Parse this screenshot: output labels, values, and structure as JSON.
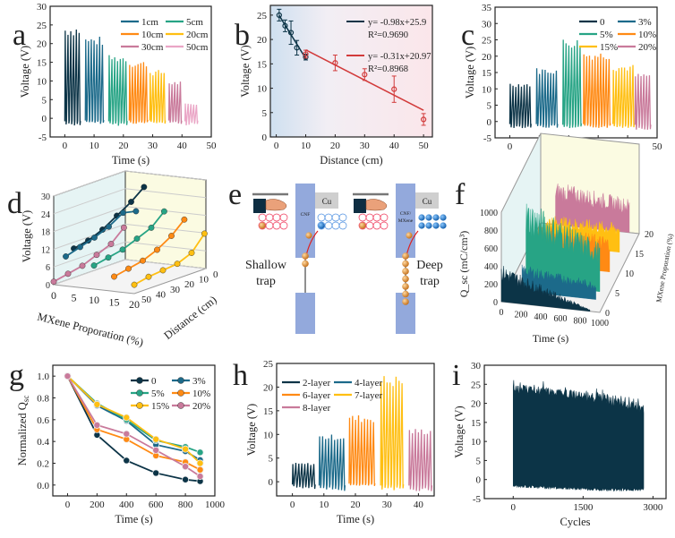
{
  "colors": {
    "navy": "#0c3447",
    "blue": "#1c6a8a",
    "green": "#27a485",
    "orange": "#ff8a14",
    "yellow": "#ffbf12",
    "pink": "#c97a9b",
    "lightpink": "#eaa6c6",
    "red": "#d23b3b"
  },
  "chart_data": [
    {
      "panel": "a",
      "type": "line",
      "xlabel": "Time (s)",
      "ylabel": "Voltage (V)",
      "xlim": [
        -5,
        50
      ],
      "ylim": [
        -5,
        30
      ],
      "xticks": [
        0,
        10,
        20,
        30,
        40,
        50
      ],
      "yticks": [
        -5,
        0,
        5,
        10,
        15,
        20,
        25,
        30
      ],
      "legend": [
        "1cm",
        "5cm",
        "10cm",
        "20cm",
        "30cm",
        "50cm"
      ],
      "segments": [
        {
          "color": "navy",
          "t": [
            0,
            6
          ],
          "peak": 25,
          "min": -2
        },
        {
          "name": "1cm",
          "color": "blue",
          "t": [
            7,
            13.5
          ],
          "peak": 22,
          "min": -1.5
        },
        {
          "name": "5cm",
          "color": "green",
          "t": [
            15,
            21
          ],
          "peak": 17,
          "min": -2
        },
        {
          "name": "10cm",
          "color": "orange",
          "t": [
            22,
            28
          ],
          "peak": 15.5,
          "min": -1.5
        },
        {
          "name": "20cm",
          "color": "yellow",
          "t": [
            29,
            34.5
          ],
          "peak": 13,
          "min": -1.5
        },
        {
          "name": "30cm",
          "color": "pink",
          "t": [
            35.5,
            40
          ],
          "peak": 10,
          "min": -1.5
        },
        {
          "name": "50cm",
          "color": "lightpink",
          "t": [
            41,
            46
          ],
          "peak": 4,
          "min": -2
        }
      ]
    },
    {
      "panel": "b",
      "type": "scatter",
      "xlabel": "Distance (cm)",
      "ylabel": "Voltage (V)",
      "xlim": [
        -2,
        53
      ],
      "ylim": [
        0,
        27
      ],
      "xticks": [
        0,
        10,
        20,
        30,
        40,
        50
      ],
      "yticks": [
        0,
        5,
        10,
        15,
        20,
        25
      ],
      "series": [
        {
          "name": "y= -0.98x+25.9",
          "r2": "R²=0.9690",
          "color": "navy",
          "x": [
            1,
            3,
            5,
            7,
            10
          ],
          "y": [
            25,
            22.8,
            21.4,
            18.3,
            16.4
          ],
          "err": [
            1.2,
            1.2,
            2.4,
            1.5,
            0.6
          ],
          "fit": [
            -0.98,
            25.9
          ],
          "fitx": [
            1,
            10
          ]
        },
        {
          "name": "y= -0.31x+20.97",
          "r2": "R²=0.8968",
          "color": "red",
          "x": [
            10,
            20,
            30,
            40,
            50
          ],
          "y": [
            17,
            15.2,
            12.8,
            9.8,
            3.6
          ],
          "err": [
            0.8,
            1.6,
            1.2,
            2.7,
            1.2
          ],
          "fit": [
            -0.31,
            20.97
          ],
          "fitx": [
            10,
            50
          ]
        }
      ]
    },
    {
      "panel": "c",
      "type": "line",
      "xlabel": "Time (s)",
      "ylabel": "Voltage (V)",
      "xlim": [
        -5,
        50
      ],
      "ylim": [
        -5,
        35
      ],
      "xticks": [
        0,
        10,
        20,
        30,
        40,
        50
      ],
      "yticks": [
        -5,
        0,
        5,
        10,
        15,
        20,
        25,
        30,
        35
      ],
      "legend": [
        "0",
        "3%",
        "5%",
        "10%",
        "15%",
        "20%"
      ],
      "segments": [
        {
          "name": "0",
          "color": "navy",
          "t": [
            0,
            7.5
          ],
          "peak": 12,
          "min": -2
        },
        {
          "name": "3%",
          "color": "blue",
          "t": [
            9,
            16
          ],
          "peak": 16.5,
          "min": -2
        },
        {
          "name": "5%",
          "color": "green",
          "t": [
            18,
            24
          ],
          "peak": 25.5,
          "min": -2.5
        },
        {
          "name": "10%",
          "color": "orange",
          "t": [
            25,
            34.5
          ],
          "peak": 21.5,
          "min": -2
        },
        {
          "name": "15%",
          "color": "yellow",
          "t": [
            35,
            42
          ],
          "peak": 17.5,
          "min": -2
        },
        {
          "name": "20%",
          "color": "pink",
          "t": [
            42.5,
            48.5
          ],
          "peak": 14.8,
          "min": -2.5
        }
      ]
    },
    {
      "panel": "d",
      "type": "line3d",
      "xlabel": "MXene Proporation (%)",
      "ylabel": "Distance (cm)",
      "zlabel": "Voltage (V)",
      "xticks": [
        0,
        5,
        10,
        15,
        20
      ],
      "yticks": [
        0,
        10,
        20,
        30,
        40,
        50
      ],
      "zticks": [
        0,
        6,
        12,
        18,
        24,
        30
      ],
      "distances": [
        1,
        10,
        20,
        30,
        40,
        50
      ],
      "series": [
        {
          "color": "navy",
          "mxene": 5,
          "v": [
            25.5,
            22,
            19,
            16,
            14,
            13
          ]
        },
        {
          "color": "blue",
          "mxene": 3,
          "v": [
            17,
            18,
            15,
            13,
            11.5,
            10
          ]
        },
        {
          "color": "green",
          "mxene": 10,
          "v": [
            18,
            14,
            12,
            10,
            9,
            8
          ]
        },
        {
          "color": "orange",
          "mxene": 15,
          "v": [
            16,
            12,
            9,
            7,
            6,
            5
          ]
        },
        {
          "color": "yellow",
          "mxene": 20,
          "v": [
            12,
            7,
            5,
            4.5,
            4,
            3
          ]
        },
        {
          "color": "pink",
          "mxene": 0,
          "v": [
            11,
            7,
            5,
            3,
            2,
            1
          ]
        }
      ]
    },
    {
      "panel": "f",
      "type": "waterfall3d",
      "xlabel": "Time (s)",
      "ylabel": "MXene Proporation (%)",
      "zlabel": "Q_sc (mC/cm³)",
      "xticks": [
        0,
        200,
        400,
        600,
        800,
        1000
      ],
      "yticks": [
        0,
        5,
        10,
        15,
        20
      ],
      "zticks": [
        0,
        200,
        400,
        600,
        800,
        1000
      ],
      "series": [
        {
          "color": "navy",
          "mxene": 0,
          "start": 420,
          "end": 20
        },
        {
          "color": "blue",
          "mxene": 3,
          "start": 300,
          "end": 200
        },
        {
          "color": "green",
          "mxene": 5,
          "start": 950,
          "end": 550
        },
        {
          "color": "orange",
          "mxene": 10,
          "start": 450,
          "end": 400
        },
        {
          "color": "yellow",
          "mxene": 15,
          "start": 330,
          "end": 330
        },
        {
          "color": "pink",
          "mxene": 20,
          "start": 480,
          "end": 380
        }
      ]
    },
    {
      "panel": "g",
      "type": "line",
      "xlabel": "Time (s)",
      "ylabel": "Normalized Q",
      "ylabel_sub": "sc",
      "xlim": [
        -100,
        1000
      ],
      "ylim": [
        -0.1,
        1.1
      ],
      "xticks": [
        0,
        200,
        400,
        600,
        800,
        1000
      ],
      "yticks": [
        0.0,
        0.2,
        0.4,
        0.6,
        0.8,
        1.0
      ],
      "x": [
        0,
        200,
        400,
        600,
        800,
        900
      ],
      "series": [
        {
          "name": "0",
          "color": "navy",
          "y": [
            1,
            0.46,
            0.225,
            0.11,
            0.05,
            0.035
          ]
        },
        {
          "name": "3%",
          "color": "blue",
          "y": [
            1,
            0.73,
            0.59,
            0.37,
            0.31,
            0.23
          ]
        },
        {
          "name": "5%",
          "color": "green",
          "y": [
            1,
            0.75,
            0.6,
            0.41,
            0.35,
            0.3
          ]
        },
        {
          "name": "10%",
          "color": "orange",
          "y": [
            1,
            0.51,
            0.42,
            0.27,
            0.21,
            0.14
          ]
        },
        {
          "name": "15%",
          "color": "yellow",
          "y": [
            1,
            0.74,
            0.62,
            0.42,
            0.33,
            0.2
          ]
        },
        {
          "name": "20%",
          "color": "pink",
          "y": [
            1,
            0.55,
            0.47,
            0.32,
            0.17,
            0.08
          ]
        }
      ]
    },
    {
      "panel": "h",
      "type": "line",
      "xlabel": "Time (s)",
      "ylabel": "Voltage (V)",
      "xlim": [
        -5,
        45
      ],
      "ylim": [
        -3,
        25
      ],
      "xticks": [
        0,
        10,
        20,
        30,
        40
      ],
      "yticks": [
        0,
        5,
        10,
        15,
        20,
        25
      ],
      "legend": [
        "2-layer",
        "4-layer",
        "6-layer",
        "7-layer",
        "8-layer"
      ],
      "segments": [
        {
          "name": "2-layer",
          "color": "navy",
          "t": [
            0,
            7.5
          ],
          "peak": 4,
          "min": -1.5
        },
        {
          "name": "4-layer",
          "color": "blue",
          "t": [
            8.5,
            17
          ],
          "peak": 10,
          "min": -2
        },
        {
          "name": "6-layer",
          "color": "orange",
          "t": [
            18,
            26.5
          ],
          "peak": 14.2,
          "min": -1
        },
        {
          "name": "7-layer",
          "color": "yellow",
          "t": [
            28,
            35.5
          ],
          "peak": 22.6,
          "min": -2
        },
        {
          "name": "8-layer",
          "color": "pink",
          "t": [
            37,
            44.5
          ],
          "peak": 11.3,
          "min": -2
        }
      ]
    },
    {
      "panel": "i",
      "type": "area",
      "xlabel": "Cycles",
      "ylabel": "Voltage (V)",
      "xlim": [
        -620,
        3280
      ],
      "ylim": [
        -5,
        30
      ],
      "xticks": [
        0,
        1500,
        3000
      ],
      "yticks": [
        -5,
        0,
        5,
        10,
        15,
        20,
        25,
        30
      ],
      "color": "navy",
      "cycles": [
        0,
        2800
      ],
      "top": [
        25,
        24,
        22.5,
        19.5
      ],
      "bottom": [
        -2,
        -2.5,
        -3,
        -3
      ]
    }
  ],
  "diagram_e": {
    "left": {
      "electrode": "CNF",
      "metal": "Cu",
      "trap": "Shallow trap"
    },
    "right": {
      "electrode": "CNF/ MXene",
      "metal": "Cu",
      "trap": "Deep trap"
    }
  },
  "panel_letters": [
    "a",
    "b",
    "c",
    "d",
    "e",
    "f",
    "g",
    "h",
    "i"
  ]
}
